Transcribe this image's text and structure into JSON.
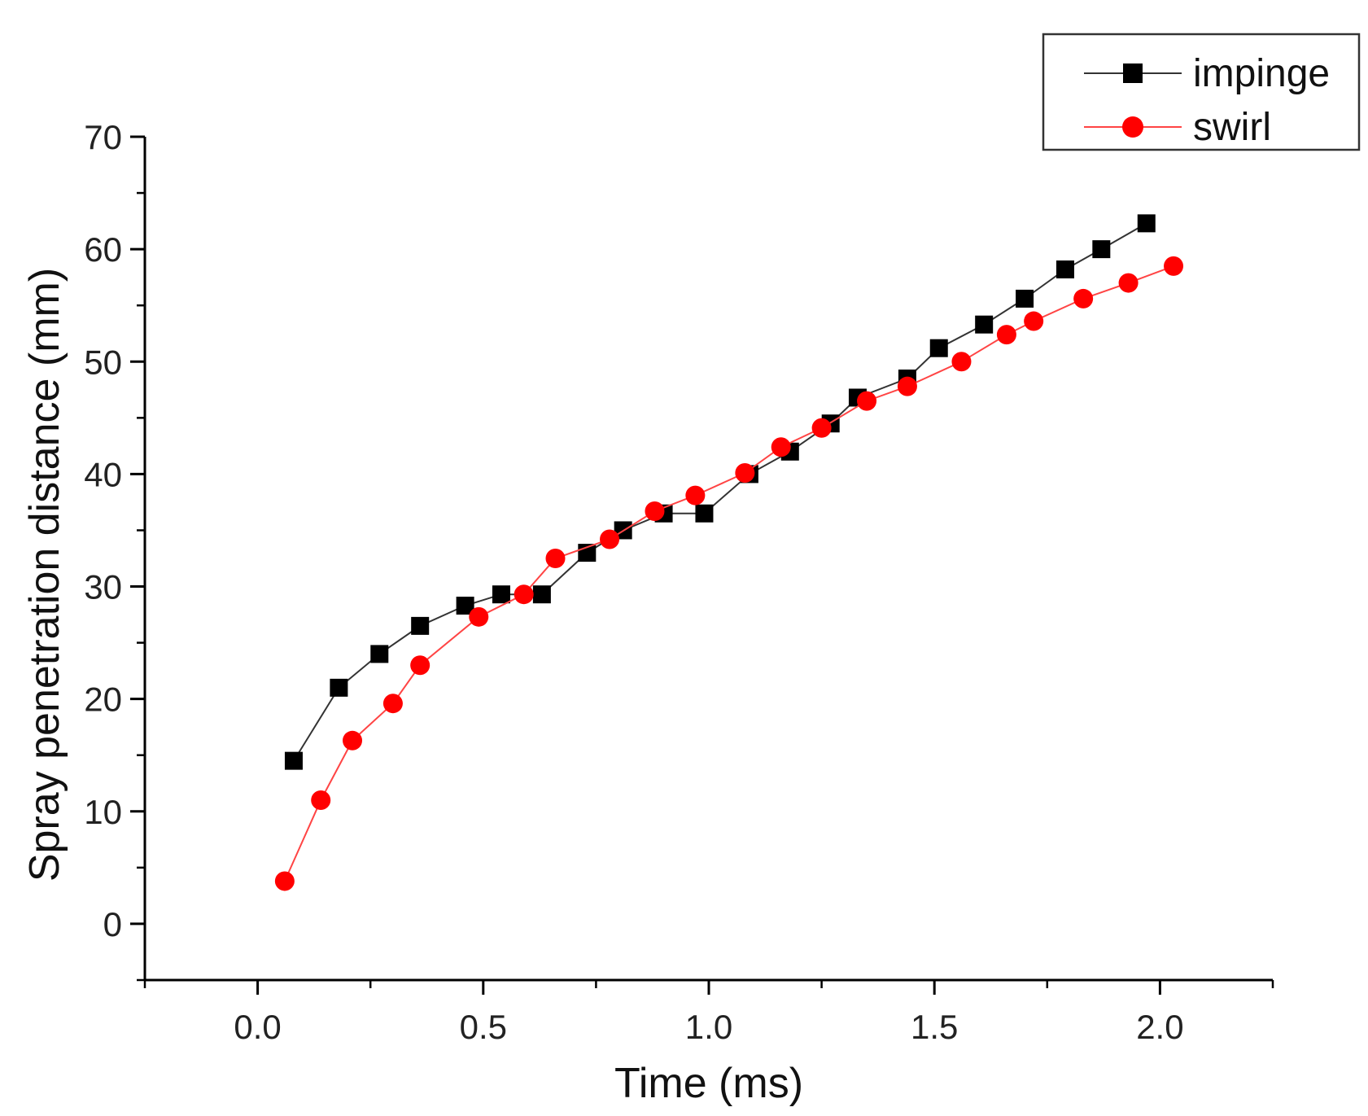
{
  "chart_data": {
    "type": "line",
    "title": "",
    "xlabel": "Time (ms)",
    "ylabel": "Spray penetration distance (mm)",
    "xlim": [
      -0.25,
      2.25
    ],
    "ylim": [
      -5,
      70
    ],
    "x_ticks": [
      0.0,
      0.5,
      1.0,
      1.5,
      2.0
    ],
    "x_tick_labels": [
      "0.0",
      "0.5",
      "1.0",
      "1.5",
      "2.0"
    ],
    "y_ticks": [
      0,
      10,
      20,
      30,
      40,
      50,
      60,
      70
    ],
    "y_tick_labels": [
      "0",
      "10",
      "20",
      "30",
      "40",
      "50",
      "60",
      "70"
    ],
    "grid": false,
    "legend_position": "top-right",
    "series": [
      {
        "name": "impinge",
        "marker": "square",
        "color": "#000000",
        "line_color": "#333333",
        "x": [
          0.08,
          0.18,
          0.27,
          0.36,
          0.46,
          0.54,
          0.63,
          0.73,
          0.81,
          0.9,
          0.99,
          1.09,
          1.18,
          1.27,
          1.33,
          1.44,
          1.51,
          1.61,
          1.7,
          1.79,
          1.87,
          1.97
        ],
        "y": [
          14.5,
          21.0,
          24.0,
          26.5,
          28.3,
          29.3,
          29.3,
          33.0,
          35.0,
          36.5,
          36.5,
          40.0,
          42.0,
          44.5,
          46.8,
          48.5,
          51.2,
          53.3,
          55.6,
          58.2,
          60.0,
          62.3
        ]
      },
      {
        "name": "swirl",
        "marker": "circle",
        "color": "#ff0000",
        "line_color": "#ff4444",
        "x": [
          0.06,
          0.14,
          0.21,
          0.3,
          0.36,
          0.49,
          0.59,
          0.66,
          0.78,
          0.88,
          0.97,
          1.08,
          1.16,
          1.25,
          1.35,
          1.44,
          1.56,
          1.66,
          1.72,
          1.83,
          1.93,
          2.03
        ],
        "y": [
          3.8,
          11.0,
          16.3,
          19.6,
          23.0,
          27.3,
          29.3,
          32.5,
          34.2,
          36.7,
          38.1,
          40.1,
          42.4,
          44.1,
          46.5,
          47.8,
          50.0,
          52.4,
          53.6,
          55.6,
          57.0,
          58.5
        ]
      }
    ]
  }
}
